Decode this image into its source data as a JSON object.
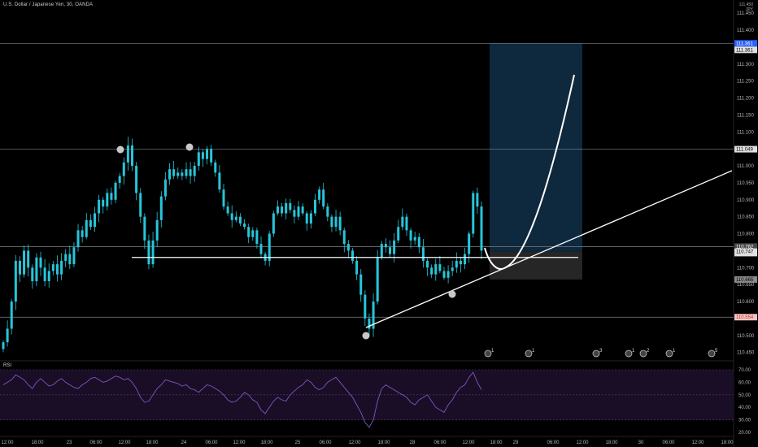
{
  "header": {
    "title": "U.S. Dollar / Japanese Yen, 30, OANDA",
    "currency_top": "111.450",
    "currency": "JPY",
    "rsi_label": "RSI"
  },
  "chart_data": [
    {
      "type": "candlestick",
      "symbol": "U.S. Dollar / Japanese Yen",
      "interval": "30",
      "source": "OANDA",
      "y_axis": {
        "range": [
          110.43,
          111.46
        ],
        "ticks": [
          111.45,
          111.4,
          111.35,
          111.3,
          111.25,
          111.2,
          111.15,
          111.1,
          111.05,
          111.0,
          110.95,
          110.9,
          110.85,
          110.8,
          110.75,
          110.7,
          110.65,
          110.6,
          110.55,
          110.5,
          110.45
        ],
        "tick_labels": [
          "111.450",
          "111.400",
          "111.350",
          "111.300",
          "111.250",
          "111.200",
          "111.150",
          "111.100",
          "111.050",
          "111.000",
          "110.950",
          "110.900",
          "110.850",
          "110.800",
          "110.750",
          "110.700",
          "110.650",
          "110.600",
          "110.550",
          "110.500",
          "110.450"
        ]
      },
      "x_axis": {
        "tick_labels": [
          "12:00",
          "18:00",
          "23",
          "06:00",
          "12:00",
          "18:00",
          "24",
          "06:00",
          "12:00",
          "18:00",
          "25",
          "06:00",
          "12:00",
          "18:00",
          "28",
          "06:00",
          "12:00",
          "18:00",
          "29",
          "06:00",
          "12:00",
          "18:00",
          "30",
          "06:00",
          "12:00",
          "18:00"
        ]
      },
      "close_path": [
        110.48,
        110.52,
        110.6,
        110.72,
        110.68,
        110.75,
        110.7,
        110.66,
        110.73,
        110.7,
        110.66,
        110.69,
        110.71,
        110.68,
        110.72,
        110.74,
        110.71,
        110.76,
        110.81,
        110.79,
        110.84,
        110.82,
        110.86,
        110.9,
        110.88,
        110.92,
        110.9,
        110.95,
        110.97,
        111.01,
        111.06,
        111.0,
        110.92,
        110.85,
        110.78,
        110.71,
        110.78,
        110.84,
        110.91,
        110.96,
        110.99,
        110.97,
        110.98,
        110.97,
        110.99,
        110.97,
        111.0,
        111.04,
        111.02,
        111.05,
        111.01,
        110.98,
        110.93,
        110.88,
        110.86,
        110.84,
        110.85,
        110.83,
        110.82,
        110.79,
        110.81,
        110.77,
        110.74,
        110.72,
        110.8,
        110.86,
        110.88,
        110.86,
        110.89,
        110.87,
        110.85,
        110.88,
        110.86,
        110.83,
        110.86,
        110.9,
        110.93,
        110.88,
        110.85,
        110.82,
        110.85,
        110.81,
        110.77,
        110.75,
        110.72,
        110.68,
        110.62,
        110.55,
        110.52,
        110.6,
        110.73,
        110.77,
        110.76,
        110.74,
        110.78,
        110.82,
        110.85,
        110.81,
        110.78,
        110.79,
        110.76,
        110.72,
        110.7,
        110.68,
        110.71,
        110.69,
        110.67,
        110.69,
        110.7,
        110.72,
        110.71,
        110.74,
        110.8,
        110.92,
        110.88,
        110.75
      ],
      "horizontal_levels": [
        {
          "price": 111.361,
          "label": "111.361",
          "color": "#9aa0a6"
        },
        {
          "price": 111.049,
          "label": "111.049",
          "color": "#9aa0a6"
        },
        {
          "price": 110.762,
          "label": "110.762",
          "color": "#9aa0a6"
        },
        {
          "price": 110.554,
          "label": "110.554",
          "color": "#9aa0a6"
        }
      ],
      "price_labels": [
        {
          "price": 111.361,
          "text": "111.361",
          "bg": "#2962ff",
          "fg": "#ffffff"
        },
        {
          "price": 111.361,
          "text": "111.361",
          "bg": "#e0e0e0",
          "fg": "#000000",
          "offset": 1
        },
        {
          "price": 111.049,
          "text": "111.049",
          "bg": "#e0e0e0",
          "fg": "#000000"
        },
        {
          "price": 110.762,
          "text": "110.762",
          "bg": "#4a4a4a",
          "fg": "#ffffff"
        },
        {
          "price": 110.762,
          "text": "110.762",
          "bg": "#e0e0e0",
          "fg": "#000000",
          "offset": 1
        },
        {
          "price": 110.747,
          "text": "110.747",
          "bg": "#e0e0e0",
          "fg": "#000000"
        },
        {
          "price": 110.665,
          "text": "110.665",
          "bg": "#8a8a8a",
          "fg": "#000000"
        },
        {
          "price": 110.554,
          "text": "110.554",
          "bg": "#f4c2c2",
          "fg": "#c0392b"
        }
      ],
      "long_position": {
        "entry": 110.747,
        "target": 111.361,
        "stop": 110.665
      },
      "neckline_price": 110.73
    },
    {
      "type": "line",
      "name": "RSI",
      "y_axis": {
        "range": [
          20,
          70
        ],
        "tick_labels": [
          "70.00",
          "60.00",
          "50.00",
          "40.00",
          "30.00",
          "20.00"
        ],
        "upper_band": 70,
        "lower_band": 30
      },
      "values": [
        58,
        60,
        62,
        66,
        64,
        62,
        58,
        55,
        60,
        63,
        60,
        57,
        58,
        61,
        63,
        60,
        58,
        56,
        55,
        58,
        60,
        63,
        64,
        62,
        60,
        61,
        63,
        65,
        64,
        62,
        63,
        60,
        55,
        48,
        44,
        45,
        50,
        55,
        58,
        62,
        61,
        60,
        59,
        57,
        58,
        55,
        54,
        52,
        55,
        58,
        57,
        55,
        53,
        50,
        46,
        44,
        45,
        48,
        52,
        50,
        46,
        44,
        38,
        35,
        40,
        45,
        48,
        46,
        45,
        50,
        53,
        56,
        58,
        62,
        60,
        56,
        54,
        56,
        60,
        62,
        64,
        60,
        56,
        52,
        48,
        42,
        36,
        28,
        24,
        30,
        45,
        55,
        58,
        56,
        54,
        52,
        50,
        48,
        44,
        42,
        46,
        48,
        50,
        45,
        40,
        38,
        36,
        42,
        46,
        52,
        56,
        58,
        64,
        68,
        60,
        54
      ]
    }
  ],
  "event_badges": [
    {
      "label": "1",
      "color": "#c0c0c0"
    },
    {
      "label": "1",
      "color": "#c0c0c0"
    },
    {
      "label": "3",
      "color": "#c0c0c0"
    },
    {
      "label": "1",
      "color": "#c0c0c0"
    },
    {
      "label": "2",
      "color": "#c0c0c0"
    },
    {
      "label": "1",
      "color": "#c0c0c0"
    },
    {
      "label": "5",
      "color": "#c0c0c0"
    }
  ],
  "colors": {
    "candle": "#26c6da",
    "levels": "#9aa0a6",
    "drawing": "#ffffff",
    "rsi_line": "#7e57c2",
    "rsi_band": "#1a0d26",
    "target_zone": "#0f2a40",
    "stop_zone": "#2a2a2a"
  }
}
